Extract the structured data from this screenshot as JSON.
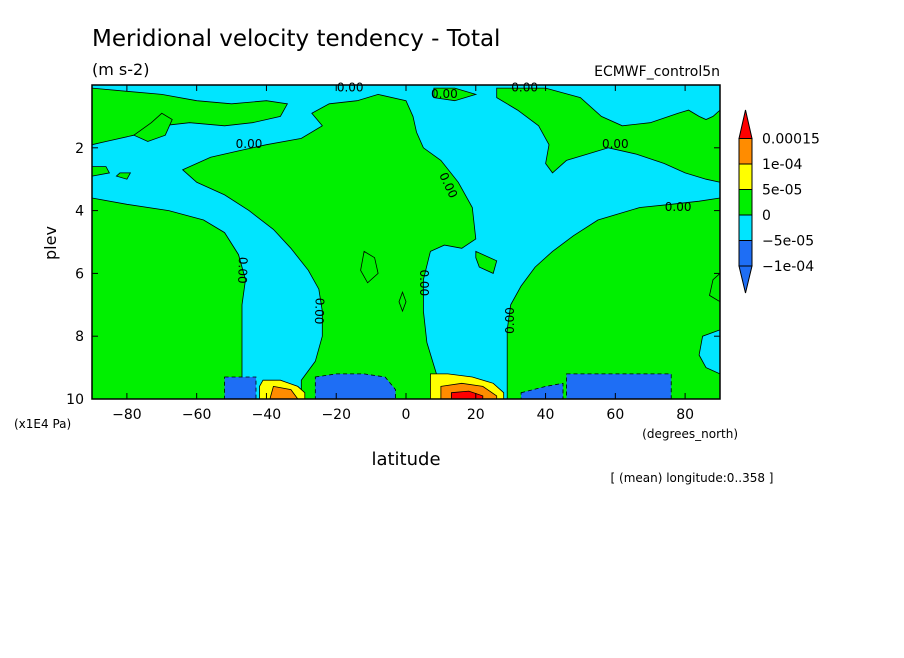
{
  "chart_data": {
    "type": "heatmap",
    "title": "Meridional velocity tendency - Total",
    "units": "(m s-2)",
    "dataset": "ECMWF_control5n",
    "footnote": "[ (mean) longitude:0..358 ]",
    "xlabel": "latitude",
    "xunits": "(degrees_north)",
    "ylabel": "plev",
    "yunits": "(x1E4 Pa)",
    "xlim": [
      -90,
      90
    ],
    "ylim": [
      0,
      10
    ],
    "y_inverted": true,
    "xticks": [
      -80,
      -60,
      -40,
      -20,
      0,
      20,
      40,
      60,
      80
    ],
    "xtick_labels": [
      "−80",
      "−60",
      "−40",
      "−20",
      "0",
      "20",
      "40",
      "60",
      "80"
    ],
    "yticks": [
      2,
      4,
      6,
      8,
      10
    ],
    "ytick_labels": [
      "2",
      "4",
      "6",
      "8",
      "10"
    ],
    "colorbar": {
      "levels": [
        -0.0001,
        -5e-05,
        0,
        5e-05,
        0.0001,
        0.00015
      ],
      "labels": [
        "−1e-04",
        "−5e-05",
        "0",
        "5e-05",
        "1e-04",
        "0.00015"
      ],
      "colors": [
        "#1e6ef5",
        "#1e6ef5",
        "#00e5ff",
        "#00f000",
        "#ffff00",
        "#ff8c00",
        "#ff0000"
      ]
    },
    "contour_labels": [
      {
        "text": "0.00",
        "lon": -45,
        "p": 1.9,
        "rotate": 0
      },
      {
        "text": "0.00",
        "lon": 60,
        "p": 1.9,
        "rotate": 0
      },
      {
        "text": "0.00",
        "lon": 78,
        "p": 3.9,
        "rotate": 0
      },
      {
        "text": "0.00",
        "lon": 11,
        "p": 0.3,
        "rotate": 0
      },
      {
        "text": "0.00",
        "lon": -16,
        "p": 0.1,
        "rotate": 0
      },
      {
        "text": "0.00",
        "lon": 34,
        "p": 0.1,
        "rotate": 0
      },
      {
        "text": "0.00",
        "lon": 12,
        "p": 3.2,
        "rotate": 65
      },
      {
        "text": "0.00",
        "lon": 5,
        "p": 6.3,
        "rotate": 90
      },
      {
        "text": "0.00",
        "lon": -47,
        "p": 5.9,
        "rotate": 92
      },
      {
        "text": "0.00",
        "lon": -25,
        "p": 7.2,
        "rotate": 92
      },
      {
        "text": "0.00",
        "lon": 30,
        "p": 7.5,
        "rotate": -90
      }
    ],
    "regions": [
      {
        "level": 0,
        "points": [
          [
            -90,
            0.1
          ],
          [
            -80,
            0.2
          ],
          [
            -70,
            0.3
          ],
          [
            -60,
            0.5
          ],
          [
            -50,
            0.6
          ],
          [
            -40,
            0.5
          ],
          [
            -34,
            0.6
          ],
          [
            -36,
            1.0
          ],
          [
            -44,
            1.2
          ],
          [
            -52,
            1.3
          ],
          [
            -62,
            1.2
          ],
          [
            -70,
            1.3
          ],
          [
            -78,
            1.6
          ],
          [
            -86,
            1.8
          ],
          [
            -90,
            1.9
          ]
        ]
      },
      {
        "level": 0,
        "points": [
          [
            -73,
            1.2
          ],
          [
            -70,
            0.9
          ],
          [
            -67,
            1.1
          ],
          [
            -69,
            1.6
          ],
          [
            -74,
            1.8
          ],
          [
            -78,
            1.6
          ]
        ]
      },
      {
        "level": 0,
        "points": [
          [
            -90,
            2.6
          ],
          [
            -86,
            2.6
          ],
          [
            -85,
            2.8
          ],
          [
            -90,
            2.9
          ]
        ]
      },
      {
        "level": 0,
        "points": [
          [
            -82,
            2.8
          ],
          [
            -79,
            2.8
          ],
          [
            -80,
            3.0
          ],
          [
            -83,
            2.9
          ]
        ]
      },
      {
        "level": 0,
        "points": [
          [
            -90,
            3.6
          ],
          [
            -80,
            3.8
          ],
          [
            -68,
            4.0
          ],
          [
            -58,
            4.3
          ],
          [
            -52,
            4.7
          ],
          [
            -48,
            5.4
          ],
          [
            -46,
            6.2
          ],
          [
            -47,
            7.0
          ],
          [
            -47,
            8.0
          ],
          [
            -47,
            9.2
          ],
          [
            -47,
            10
          ],
          [
            -90,
            10
          ]
        ]
      },
      {
        "level": 0,
        "points": [
          [
            -64,
            2.7
          ],
          [
            -56,
            2.3
          ],
          [
            -48,
            2.1
          ],
          [
            -40,
            1.9
          ],
          [
            -30,
            1.7
          ],
          [
            -24,
            1.3
          ],
          [
            -27,
            0.9
          ],
          [
            -22,
            0.6
          ],
          [
            -14,
            0.5
          ],
          [
            -8,
            0.3
          ],
          [
            0,
            0.5
          ],
          [
            2,
            1.0
          ],
          [
            3,
            1.5
          ],
          [
            5,
            2.0
          ],
          [
            10,
            2.4
          ],
          [
            15,
            3.1
          ],
          [
            19,
            3.9
          ],
          [
            20,
            4.9
          ],
          [
            16,
            5.2
          ],
          [
            11,
            5.1
          ],
          [
            7,
            5.3
          ],
          [
            5,
            6.2
          ],
          [
            5,
            7.2
          ],
          [
            6,
            8.2
          ],
          [
            9,
            9.3
          ],
          [
            14,
            10
          ],
          [
            -30,
            10
          ],
          [
            -30,
            9.4
          ],
          [
            -26,
            8.8
          ],
          [
            -24,
            8.0
          ],
          [
            -24,
            7.2
          ],
          [
            -25,
            6.5
          ],
          [
            -28,
            5.9
          ],
          [
            -33,
            5.2
          ],
          [
            -38,
            4.6
          ],
          [
            -45,
            4.0
          ],
          [
            -52,
            3.5
          ],
          [
            -60,
            3.1
          ]
        ]
      },
      {
        "level": 0,
        "points": [
          [
            -12,
            5.3
          ],
          [
            -9,
            5.5
          ],
          [
            -8,
            6.0
          ],
          [
            -11,
            6.3
          ],
          [
            -13,
            5.9
          ]
        ]
      },
      {
        "level": 0,
        "points": [
          [
            -1,
            6.6
          ],
          [
            0,
            6.9
          ],
          [
            -1,
            7.2
          ],
          [
            -2,
            6.9
          ]
        ]
      },
      {
        "level": 0,
        "points": [
          [
            20,
            5.3
          ],
          [
            26,
            5.6
          ],
          [
            25,
            6.0
          ],
          [
            21,
            5.8
          ],
          [
            20,
            5.5
          ]
        ]
      },
      {
        "level": 0,
        "points": [
          [
            8,
            0.1
          ],
          [
            14,
            0.1
          ],
          [
            20,
            0.3
          ],
          [
            14,
            0.5
          ],
          [
            8,
            0.4
          ]
        ]
      },
      {
        "level": 0,
        "points": [
          [
            26,
            0.1
          ],
          [
            40,
            0.1
          ],
          [
            50,
            0.4
          ],
          [
            56,
            1.0
          ],
          [
            62,
            1.3
          ],
          [
            70,
            1.2
          ],
          [
            78,
            0.9
          ],
          [
            81,
            0.8
          ],
          [
            84,
            1.0
          ],
          [
            86,
            1.1
          ],
          [
            88,
            1.0
          ],
          [
            90,
            0.8
          ],
          [
            90,
            3.1
          ],
          [
            86,
            3.0
          ],
          [
            80,
            2.8
          ],
          [
            74,
            2.5
          ],
          [
            66,
            2.2
          ],
          [
            58,
            2.0
          ],
          [
            52,
            2.2
          ],
          [
            46,
            2.4
          ],
          [
            42,
            2.8
          ],
          [
            40,
            2.5
          ],
          [
            41,
            1.9
          ],
          [
            38,
            1.3
          ],
          [
            32,
            0.8
          ],
          [
            26,
            0.4
          ]
        ]
      },
      {
        "level": 0,
        "points": [
          [
            90,
            3.6
          ],
          [
            84,
            3.7
          ],
          [
            76,
            3.8
          ],
          [
            67,
            3.9
          ],
          [
            61,
            4.1
          ],
          [
            55,
            4.3
          ],
          [
            48,
            4.8
          ],
          [
            42,
            5.3
          ],
          [
            37,
            5.8
          ],
          [
            33,
            6.4
          ],
          [
            30,
            7.0
          ],
          [
            29,
            7.8
          ],
          [
            29,
            8.6
          ],
          [
            29,
            10
          ],
          [
            90,
            10
          ],
          [
            90,
            9.2
          ],
          [
            86,
            9.0
          ],
          [
            84,
            8.6
          ],
          [
            85,
            8.0
          ],
          [
            90,
            7.8
          ]
        ]
      },
      {
        "level": 0,
        "points": [
          [
            90,
            6.9
          ],
          [
            87,
            6.7
          ],
          [
            88,
            6.2
          ],
          [
            90,
            6.0
          ]
        ]
      },
      {
        "level": -1,
        "points": [
          [
            -52,
            9.3
          ],
          [
            -43,
            9.3
          ],
          [
            -43,
            10
          ],
          [
            -52,
            10
          ]
        ]
      },
      {
        "level": -1,
        "points": [
          [
            46,
            9.2
          ],
          [
            76,
            9.2
          ],
          [
            76,
            10
          ],
          [
            46,
            10
          ]
        ]
      },
      {
        "level": -1,
        "points": [
          [
            -26,
            9.3
          ],
          [
            -20,
            9.2
          ],
          [
            -12,
            9.2
          ],
          [
            -6,
            9.3
          ],
          [
            -3,
            9.7
          ],
          [
            -3,
            10
          ],
          [
            -26,
            10
          ]
        ]
      },
      {
        "level": -1,
        "points": [
          [
            33,
            9.8
          ],
          [
            40,
            9.6
          ],
          [
            45,
            9.5
          ],
          [
            45,
            10
          ],
          [
            33,
            10
          ]
        ]
      },
      {
        "level": 1,
        "points": [
          [
            -41,
            9.4
          ],
          [
            -36,
            9.4
          ],
          [
            -31,
            9.6
          ],
          [
            -29,
            9.8
          ],
          [
            -29,
            10
          ],
          [
            -42,
            10
          ],
          [
            -42,
            9.6
          ]
        ]
      },
      {
        "level": 1,
        "points": [
          [
            7,
            9.2
          ],
          [
            12,
            9.2
          ],
          [
            19,
            9.3
          ],
          [
            25,
            9.5
          ],
          [
            28,
            9.8
          ],
          [
            28,
            10
          ],
          [
            7,
            10
          ]
        ]
      },
      {
        "level": 2,
        "points": [
          [
            -38,
            9.6
          ],
          [
            -33,
            9.7
          ],
          [
            -31,
            10
          ],
          [
            -39,
            10
          ]
        ]
      },
      {
        "level": 2,
        "points": [
          [
            10,
            9.6
          ],
          [
            16,
            9.5
          ],
          [
            22,
            9.6
          ],
          [
            26,
            9.9
          ],
          [
            26,
            10
          ],
          [
            10,
            10
          ]
        ]
      },
      {
        "level": 3,
        "points": [
          [
            13,
            9.8
          ],
          [
            18,
            9.75
          ],
          [
            22,
            9.9
          ],
          [
            22,
            10
          ],
          [
            13,
            10
          ]
        ]
      }
    ]
  }
}
